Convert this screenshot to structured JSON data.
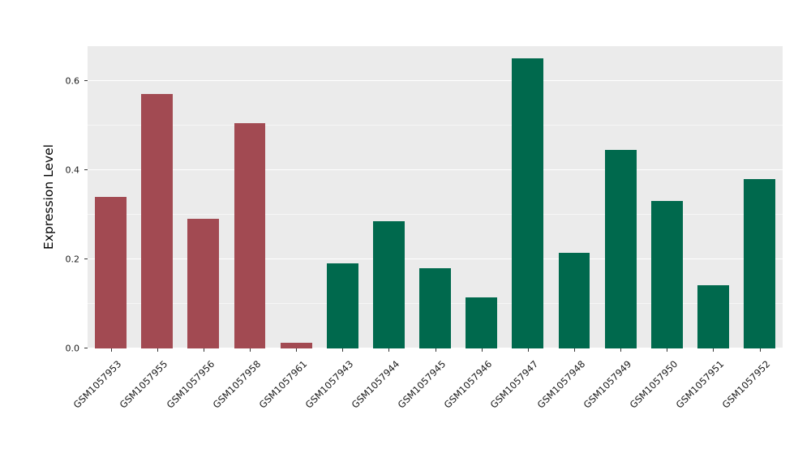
{
  "chart_data": {
    "type": "bar",
    "title": "",
    "xlabel": "",
    "ylabel": "Expression Level",
    "categories": [
      "GSM1057953",
      "GSM1057955",
      "GSM1057956",
      "GSM1057958",
      "GSM1057961",
      "GSM1057943",
      "GSM1057944",
      "GSM1057945",
      "GSM1057946",
      "GSM1057947",
      "GSM1057948",
      "GSM1057949",
      "GSM1057950",
      "GSM1057951",
      "GSM1057952"
    ],
    "values": [
      0.34,
      0.57,
      0.29,
      0.505,
      0.012,
      0.19,
      0.285,
      0.18,
      0.115,
      0.65,
      0.215,
      0.445,
      0.33,
      0.142,
      0.38
    ],
    "bar_colors": [
      "#A24A52",
      "#A24A52",
      "#A24A52",
      "#A24A52",
      "#A24A52",
      "#00694D",
      "#00694D",
      "#00694D",
      "#00694D",
      "#00694D",
      "#00694D",
      "#00694D",
      "#00694D",
      "#00694D",
      "#00694D"
    ],
    "group_colors": {
      "maroon_group": "#A24A52",
      "green_group": "#00694D"
    },
    "ylim": [
      0,
      0.678
    ],
    "yticks": [
      0.0,
      0.2,
      0.4,
      0.6
    ],
    "ytick_labels": [
      "0.0",
      "0.2",
      "0.4",
      "0.6"
    ],
    "minor_gridlines": [
      0.1,
      0.3,
      0.5
    ],
    "panel_background": "#EBEBEB",
    "grid_color": "#FFFFFF",
    "legend_position": "none",
    "grid": "on"
  }
}
